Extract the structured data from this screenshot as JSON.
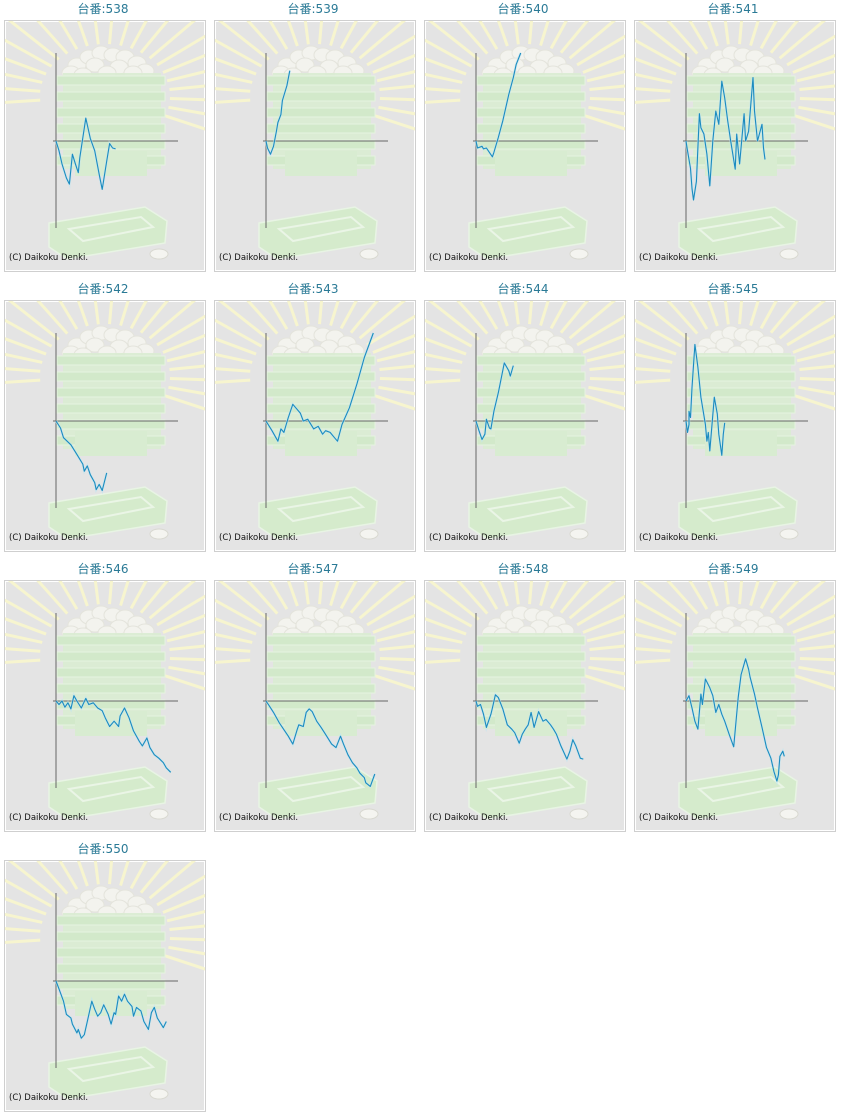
{
  "copyright": "(C) Daikoku Denki.",
  "colors": {
    "line": "#1b8bbf",
    "axis": "#666666",
    "title": "#2a7a96"
  },
  "chart_data": [
    {
      "type": "line",
      "title": "台番:538",
      "xlim": [
        0,
        100
      ],
      "ylim": [
        -100,
        100
      ],
      "x": [
        0,
        2,
        4,
        7,
        9,
        11,
        13,
        15,
        16,
        20,
        23,
        26,
        29,
        31,
        34,
        36,
        38,
        40
      ],
      "y": [
        0,
        -11,
        -26,
        -42,
        -49,
        -15,
        -26,
        -36,
        -19,
        26,
        3,
        -11,
        -38,
        -55,
        -23,
        -3,
        -8,
        -9
      ]
    },
    {
      "type": "line",
      "title": "台番:539",
      "xlim": [
        0,
        100
      ],
      "ylim": [
        -100,
        100
      ],
      "x": [
        0,
        1,
        3,
        5,
        7,
        8,
        10,
        11,
        14,
        16
      ],
      "y": [
        0,
        -8,
        -15,
        -6,
        11,
        21,
        30,
        46,
        63,
        80
      ]
    },
    {
      "type": "line",
      "title": "台番:540",
      "xlim": [
        0,
        100
      ],
      "ylim": [
        -100,
        100
      ],
      "x": [
        0,
        1,
        4,
        5,
        7,
        9,
        11,
        12,
        15,
        18,
        22,
        25,
        27,
        30
      ],
      "y": [
        0,
        -8,
        -6,
        -9,
        -8,
        -13,
        -18,
        -13,
        4,
        23,
        53,
        72,
        87,
        100
      ]
    },
    {
      "type": "line",
      "title": "台番:541",
      "xlim": [
        0,
        100
      ],
      "ylim": [
        -100,
        100
      ],
      "x": [
        0,
        1,
        3,
        4,
        5,
        7,
        9,
        10,
        12,
        14,
        16,
        18,
        20,
        22,
        24,
        26,
        28,
        30,
        33,
        34,
        36,
        39,
        40,
        42,
        45,
        46,
        48,
        51,
        52,
        53
      ],
      "y": [
        0,
        -11,
        -31,
        -54,
        -67,
        -46,
        31,
        15,
        8,
        -15,
        -51,
        0,
        34,
        19,
        68,
        49,
        23,
        0,
        -32,
        8,
        -26,
        31,
        0,
        11,
        72,
        34,
        0,
        19,
        -8,
        -21
      ]
    },
    {
      "type": "line",
      "title": "台番:542",
      "xlim": [
        0,
        100
      ],
      "ylim": [
        -100,
        100
      ],
      "x": [
        0,
        3,
        5,
        10,
        14,
        18,
        19,
        21,
        23,
        26,
        27,
        29,
        31,
        34
      ],
      "y": [
        0,
        -8,
        -19,
        -27,
        -38,
        -49,
        -57,
        -51,
        -61,
        -70,
        -78,
        -72,
        -79,
        -59
      ]
    },
    {
      "type": "line",
      "title": "台番:543",
      "xlim": [
        0,
        100
      ],
      "ylim": [
        -100,
        100
      ],
      "x": [
        0,
        4,
        8,
        10,
        12,
        15,
        18,
        23,
        25,
        28,
        32,
        35,
        38,
        40,
        43,
        46,
        48,
        51,
        56,
        61,
        66,
        72
      ],
      "y": [
        0,
        -11,
        -23,
        -9,
        -13,
        4,
        19,
        9,
        0,
        2,
        -9,
        -6,
        -15,
        -11,
        -13,
        -19,
        -23,
        -4,
        15,
        42,
        72,
        100
      ]
    },
    {
      "type": "line",
      "title": "台番:544",
      "xlim": [
        0,
        100
      ],
      "ylim": [
        -100,
        100
      ],
      "x": [
        0,
        2,
        4,
        6,
        7,
        9,
        10,
        12,
        15,
        17,
        19,
        22,
        23,
        25
      ],
      "y": [
        0,
        -11,
        -21,
        -15,
        2,
        -8,
        -9,
        11,
        32,
        49,
        66,
        57,
        51,
        63
      ]
    },
    {
      "type": "line",
      "title": "台番:545",
      "xlim": [
        0,
        100
      ],
      "ylim": [
        -100,
        100
      ],
      "x": [
        0,
        1,
        2,
        2,
        3,
        4,
        6,
        8,
        10,
        13,
        14,
        15,
        16,
        19,
        21,
        22,
        24,
        25,
        26
      ],
      "y": [
        0,
        -13,
        -4,
        11,
        4,
        38,
        87,
        61,
        27,
        -4,
        -23,
        -13,
        -34,
        27,
        8,
        -15,
        -39,
        -15,
        -2
      ]
    },
    {
      "type": "line",
      "title": "台番:546",
      "xlim": [
        0,
        100
      ],
      "ylim": [
        -100,
        100
      ],
      "x": [
        0,
        2,
        4,
        6,
        8,
        10,
        12,
        14,
        17,
        20,
        22,
        25,
        28,
        31,
        33,
        36,
        39,
        42,
        43,
        46,
        49,
        52,
        56,
        58,
        61,
        63,
        66,
        69,
        72,
        74,
        77
      ],
      "y": [
        0,
        -4,
        0,
        -7,
        -2,
        -9,
        6,
        0,
        -8,
        3,
        -4,
        -2,
        -8,
        -11,
        -19,
        -29,
        -23,
        -29,
        -17,
        -8,
        -19,
        -34,
        -46,
        -51,
        -42,
        -53,
        -61,
        -65,
        -70,
        -76,
        -81
      ]
    },
    {
      "type": "line",
      "title": "台番:547",
      "xlim": [
        0,
        100
      ],
      "ylim": [
        -100,
        100
      ],
      "x": [
        0,
        2,
        5,
        9,
        11,
        15,
        18,
        21,
        22,
        25,
        27,
        29,
        31,
        34,
        37,
        40,
        44,
        47,
        50,
        52,
        55,
        58,
        61,
        63,
        66,
        67,
        70,
        73
      ],
      "y": [
        0,
        -5,
        -13,
        -25,
        -30,
        -40,
        -49,
        -32,
        -27,
        -29,
        -13,
        -9,
        -12,
        -23,
        -30,
        -38,
        -49,
        -53,
        -40,
        -49,
        -61,
        -70,
        -76,
        -82,
        -87,
        -93,
        -97,
        -83
      ]
    },
    {
      "type": "line",
      "title": "台番:548",
      "xlim": [
        0,
        100
      ],
      "ylim": [
        -100,
        100
      ],
      "x": [
        0,
        1,
        3,
        5,
        7,
        10,
        11,
        13,
        15,
        18,
        21,
        24,
        26,
        29,
        31,
        33,
        35,
        37,
        39,
        42,
        45,
        47,
        50,
        52,
        54,
        57,
        61,
        63,
        65,
        67,
        70,
        72
      ],
      "y": [
        0,
        -6,
        -4,
        -15,
        -30,
        -15,
        -8,
        7,
        4,
        -9,
        -27,
        -32,
        -36,
        -48,
        -38,
        -32,
        -27,
        -13,
        -30,
        -12,
        -23,
        -21,
        -27,
        -32,
        -38,
        -51,
        -66,
        -57,
        -44,
        -51,
        -65,
        -66
      ]
    },
    {
      "type": "line",
      "title": "台番:549",
      "xlim": [
        0,
        100
      ],
      "ylim": [
        -100,
        100
      ],
      "x": [
        0,
        2,
        4,
        6,
        8,
        10,
        11,
        13,
        16,
        18,
        20,
        22,
        24,
        26,
        29,
        32,
        35,
        37,
        40,
        42,
        43,
        46,
        48,
        51,
        54,
        57,
        59,
        61,
        62,
        63,
        65,
        66
      ],
      "y": [
        0,
        6,
        -8,
        -23,
        -32,
        8,
        -4,
        25,
        15,
        6,
        -13,
        -4,
        -15,
        -23,
        -38,
        -52,
        4,
        30,
        48,
        36,
        27,
        8,
        -8,
        -30,
        -53,
        -65,
        -80,
        -91,
        -84,
        -63,
        -57,
        -63
      ]
    },
    {
      "type": "line",
      "title": "台番:550",
      "xlim": [
        0,
        100
      ],
      "ylim": [
        -100,
        100
      ],
      "x": [
        0,
        2,
        5,
        7,
        10,
        11,
        14,
        15,
        17,
        19,
        21,
        24,
        26,
        28,
        30,
        32,
        35,
        37,
        39,
        40,
        42,
        44,
        46,
        48,
        51,
        52,
        54,
        57,
        59,
        62,
        64,
        66,
        68,
        72,
        74
      ],
      "y": [
        0,
        -9,
        -23,
        -38,
        -42,
        -49,
        -59,
        -55,
        -65,
        -61,
        -46,
        -23,
        -32,
        -40,
        -36,
        -27,
        -38,
        -49,
        -36,
        -38,
        -17,
        -23,
        -15,
        -23,
        -29,
        -40,
        -30,
        -34,
        -46,
        -55,
        -36,
        -30,
        -42,
        -53,
        -46
      ]
    }
  ]
}
